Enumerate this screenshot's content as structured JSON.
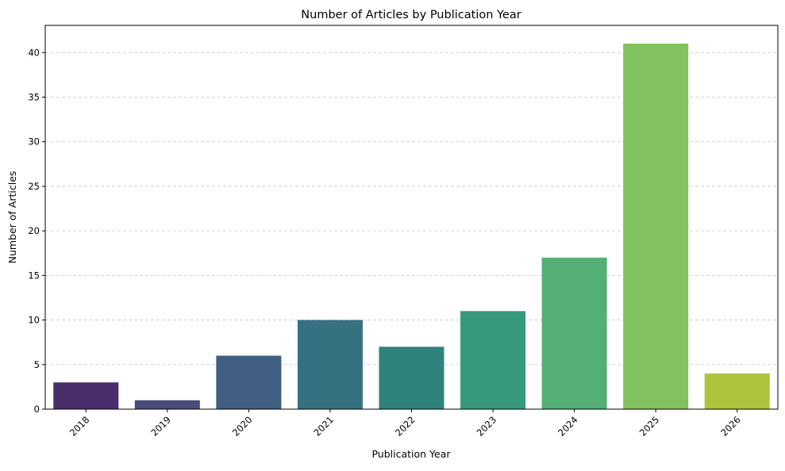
{
  "chart_data": {
    "type": "bar",
    "title": "Number of Articles by Publication Year",
    "xlabel": "Publication Year",
    "ylabel": "Number of Articles",
    "categories": [
      "2018",
      "2019",
      "2020",
      "2021",
      "2022",
      "2023",
      "2024",
      "2025",
      "2026"
    ],
    "values": [
      3,
      1,
      6,
      10,
      7,
      11,
      17,
      41,
      4
    ],
    "colors": [
      "#4a2e6b",
      "#4a4c7d",
      "#415f82",
      "#367181",
      "#2e837c",
      "#36997c",
      "#54af74",
      "#82c160",
      "#abc43c"
    ],
    "ylim": [
      0,
      43.05
    ],
    "yticks": [
      0,
      5,
      10,
      15,
      20,
      25,
      30,
      35,
      40
    ],
    "grid": "y-dashed",
    "xtick_rotation": 45
  }
}
